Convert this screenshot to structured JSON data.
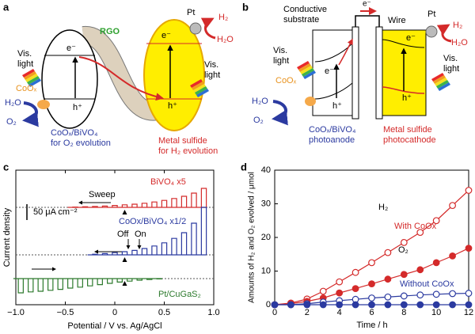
{
  "diagram_a": {
    "letter": "a",
    "light_left": [
      "Vis.",
      "light"
    ],
    "light_right": [
      "Vis.",
      "light"
    ],
    "electron_left": "e⁻",
    "electron_right": "e⁻",
    "mediator": "RGO",
    "cocatalyst_h2": "Pt",
    "product_h2": "H₂",
    "reactant_right": "H₂O",
    "cocatalyst_o2": "CoOₓ",
    "hole_left": "h⁺",
    "hole_right": "h⁺",
    "reactant_left": "H₂O",
    "product_o2": "O₂",
    "left_label": [
      "CoOₓ/BiVO₄",
      "for O₂ evolution"
    ],
    "right_label": [
      "Metal sulfide",
      "for H₂ evolution"
    ]
  },
  "diagram_b": {
    "letter": "b",
    "substrate": [
      "Conductive",
      "substrate"
    ],
    "wire": "Wire",
    "electron_wire": "e⁻",
    "electron_left": "e⁻",
    "electron_right": "e⁻",
    "cocatalyst_h2": "Pt",
    "product_h2": "H₂",
    "reactant_right": "H₂O",
    "light_left": [
      "Vis.",
      "light"
    ],
    "light_right": [
      "Vis.",
      "light"
    ],
    "cocatalyst_o2": "CoOₓ",
    "hole_left": "h⁺",
    "hole_right": "h⁺",
    "reactant_left": "H₂O",
    "product_o2": "O₂",
    "left_label": [
      "CoOₓ/BiVO₄",
      "photoanode"
    ],
    "right_label": [
      "Metal sulfide",
      "photocathode"
    ]
  },
  "chart_data": [
    {
      "panel": "c",
      "type": "chopped",
      "ylabel": "Current density",
      "xlabel": "Potential / V vs. Ag/AgCl",
      "xlim": [
        -1,
        1
      ],
      "xticks": [
        {
          "value": -1,
          "label": "−1.0"
        },
        {
          "value": -0.5,
          "label": "−0.5"
        },
        0,
        0.5,
        {
          "value": 1,
          "label": "1.0"
        }
      ],
      "scale_bar": {
        "value": 50,
        "label": "50 μA cm⁻²"
      },
      "annotations": {
        "sweep": "Sweep",
        "off": "Off",
        "on": "On"
      },
      "series": [
        {
          "name": "BiVO₄ x5",
          "color": "#d42a2a",
          "x": [
            -0.4,
            -0.3,
            -0.2,
            -0.1,
            0,
            0.1,
            0.2,
            0.3,
            0.4,
            0.5,
            0.6,
            0.7,
            0.8,
            0.9
          ],
          "values": [
            1,
            2,
            3,
            4,
            6,
            8,
            10,
            13,
            17,
            22,
            28,
            35,
            45,
            60
          ]
        },
        {
          "name": "CoOx/BiVO₄ x1/2",
          "color": "#2b3aa0",
          "x": [
            -0.2,
            -0.1,
            0,
            0.1,
            0.2,
            0.3,
            0.4,
            0.5,
            0.6,
            0.7,
            0.8,
            0.9
          ],
          "values": [
            2,
            4,
            7,
            10,
            14,
            20,
            28,
            38,
            52,
            70,
            100,
            150
          ]
        },
        {
          "name": "Pt/CuGaS₂",
          "color": "#2d7a2d",
          "x": [
            -0.95,
            -0.85,
            -0.75,
            -0.65,
            -0.55,
            -0.45,
            -0.35,
            -0.25,
            -0.15,
            -0.05,
            0.05,
            0.15,
            0.25,
            0.35,
            0.45
          ],
          "values": [
            -45,
            -42,
            -40,
            -37,
            -34,
            -30,
            -27,
            -23,
            -19,
            -15,
            -11,
            -8,
            -5,
            -3,
            -1
          ]
        }
      ]
    },
    {
      "panel": "d",
      "type": "line",
      "ylabel": "Amounts of H₂ and O₂ evolved / μmol",
      "xlabel": "Time / h",
      "xlim": [
        0,
        12
      ],
      "xticks": [
        0,
        2,
        4,
        6,
        8,
        10,
        12
      ],
      "ylim": [
        0,
        40
      ],
      "yticks": [
        0,
        10,
        20,
        30,
        40
      ],
      "annotations": {
        "h2": "H₂",
        "with": "With CoOx",
        "o2": "O₂",
        "without": "Without CoOx"
      },
      "x": [
        0,
        1,
        2,
        3,
        4,
        5,
        6,
        7,
        8,
        9,
        10,
        11,
        12
      ],
      "series": [
        {
          "color": "#d42a2a",
          "marker": "open",
          "values": [
            0,
            0.5,
            1.7,
            4,
            6.8,
            9.6,
            12.5,
            15.5,
            18.5,
            21.5,
            25,
            29.5,
            34
          ]
        },
        {
          "color": "#d42a2a",
          "marker": "filled",
          "values": [
            0,
            0.3,
            1,
            2,
            3.5,
            4.8,
            6.2,
            7.6,
            9,
            10.4,
            12.5,
            14.5,
            16.8
          ]
        },
        {
          "color": "#2b3aa0",
          "marker": "open",
          "values": [
            0,
            0,
            0.3,
            0.8,
            1.2,
            1.6,
            2,
            2.3,
            2.6,
            2.9,
            3.1,
            3.3,
            3.4
          ]
        },
        {
          "color": "#2b3aa0",
          "marker": "filled",
          "values": [
            0,
            0,
            0,
            0,
            0,
            0,
            0,
            0,
            0,
            0,
            0,
            0,
            0
          ]
        }
      ]
    }
  ]
}
